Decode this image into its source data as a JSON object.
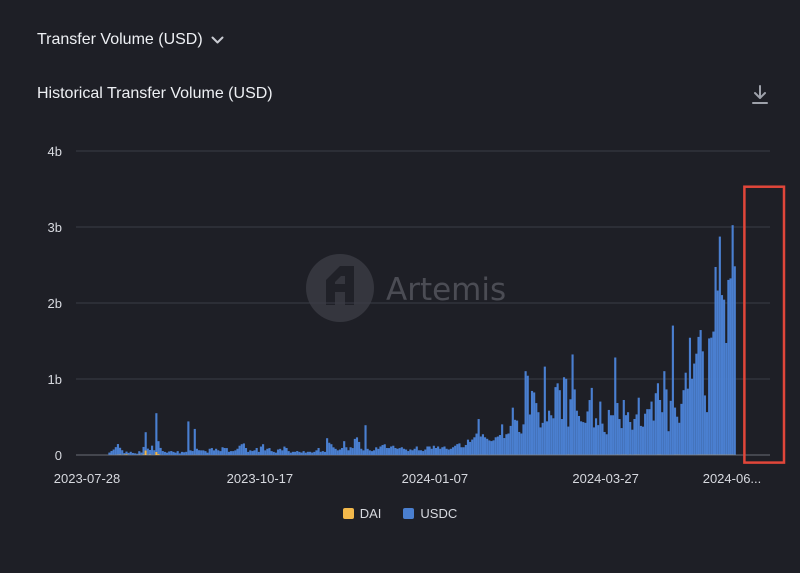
{
  "header": {
    "dropdown_label": "Transfer Volume (USD)",
    "chart_title": "Historical Transfer Volume (USD)",
    "icons": {
      "dropdown": "chevron-down-icon",
      "download": "download-icon",
      "watermark": "artemis-logo"
    }
  },
  "watermark": {
    "text": "Artemis"
  },
  "colors": {
    "DAI": "#f2b84b",
    "USDC": "#4a7fd0",
    "background": "#1e1f26",
    "highlight": "#e0463a",
    "grid": "#3a3c46"
  },
  "chart_data": {
    "type": "bar",
    "stacked": true,
    "title": "Historical Transfer Volume (USD)",
    "xlabel": "",
    "ylabel": "",
    "ylim": [
      0,
      4000000000
    ],
    "yticks": [
      {
        "value": 0,
        "label": "0"
      },
      {
        "value": 1000000000,
        "label": "1b"
      },
      {
        "value": 2000000000,
        "label": "2b"
      },
      {
        "value": 3000000000,
        "label": "3b"
      },
      {
        "value": 4000000000,
        "label": "4b"
      }
    ],
    "x_range": [
      "2023-07-28",
      "2024-06-12"
    ],
    "xticks": [
      {
        "date": "2023-07-28",
        "label": "2023-07-28"
      },
      {
        "date": "2023-10-17",
        "label": "2023-10-17"
      },
      {
        "date": "2024-01-07",
        "label": "2024-01-07"
      },
      {
        "date": "2024-03-27",
        "label": "2024-03-27"
      },
      {
        "date": "2024-06-06",
        "label": "2024-06..."
      }
    ],
    "legend": {
      "placement": "bottom",
      "entries": [
        "DAI",
        "USDC"
      ]
    },
    "grid": true,
    "highlight_box": {
      "x_start": "2024-05-31",
      "x_end": "2024-06-12",
      "y_start": -100000000,
      "y_end": 3530000000
    },
    "series": [
      {
        "name": "DAI",
        "values": [
          0,
          0,
          0,
          0,
          0,
          0,
          0,
          0,
          0,
          0,
          2000000,
          3000000,
          2000000,
          3000000,
          4000000,
          5000000,
          3000000,
          5000000,
          10000000,
          3000000,
          2000000,
          2000000,
          2000000,
          2000000,
          5000000,
          2000000,
          6000000,
          60000000,
          4000000,
          6000000,
          3000000,
          3000000,
          40000000,
          12000000,
          3000000,
          2000000,
          1000000,
          1000000,
          1000000,
          2000000,
          1000000,
          1000000,
          1000000,
          1000000,
          1000000,
          1000000,
          2000000,
          2000000,
          1000000,
          2000000,
          3000000,
          2000000,
          3000000,
          1000000,
          1000000,
          1000000,
          1000000,
          2000000,
          1000000,
          1000000,
          2000000,
          2000000,
          1000000,
          2000000,
          2000000,
          1000000,
          2000000,
          1000000,
          1000000,
          1000000,
          2000000,
          2000000,
          2000000,
          2000000,
          2000000,
          1000000,
          1000000,
          2000000,
          2000000,
          2000000,
          1000000,
          1000000,
          2000000,
          1000000,
          2000000,
          1000000,
          1000000,
          1000000,
          1000000,
          2000000,
          1000000,
          1000000,
          1000000,
          2000000,
          1000000,
          1000000,
          2000000,
          2000000,
          2000000,
          1000000,
          2000000,
          1000000,
          1000000,
          2000000,
          2000000,
          2000000,
          1000000,
          1000000,
          2000000,
          2000000,
          1000000,
          1000000,
          1000000,
          1000000,
          2000000,
          1000000,
          1000000,
          1000000,
          2000000,
          2000000,
          2000000,
          2000000,
          2000000,
          2000000,
          1000000,
          2000000,
          2000000,
          2000000,
          2000000,
          1000000,
          2000000,
          1000000,
          1000000,
          1000000,
          2000000,
          1000000,
          1000000,
          2000000,
          1000000,
          1000000,
          2000000,
          1000000,
          2000000,
          2000000,
          2000000,
          2000000,
          1000000,
          2000000,
          2000000,
          2000000,
          2000000,
          3000000,
          2000000,
          2000000,
          2000000,
          2000000,
          2000000,
          2000000,
          2000000,
          2000000,
          2000000,
          2000000,
          2000000,
          2000000,
          2000000,
          2000000,
          2000000,
          2000000,
          2000000,
          2000000,
          2000000,
          2000000,
          2000000,
          3000000,
          3000000,
          2000000,
          2000000,
          2000000,
          2000000,
          2000000,
          3000000,
          3000000,
          2000000,
          3000000,
          3000000,
          3000000,
          3000000,
          3000000,
          2000000,
          3000000,
          3000000,
          3000000,
          3000000,
          3000000,
          3000000,
          3000000,
          3000000,
          3000000,
          3000000,
          3000000,
          3000000,
          3000000,
          3000000,
          3000000,
          3000000,
          3000000,
          3000000,
          3000000,
          3000000,
          3000000,
          3000000,
          3000000,
          3000000,
          3000000,
          3000000,
          3000000,
          3000000,
          3000000,
          3000000,
          3000000,
          3000000,
          3000000,
          3000000,
          3000000,
          3000000,
          4000000,
          3000000,
          3000000,
          3000000,
          3000000,
          3000000,
          3000000,
          3000000,
          3000000,
          3000000,
          3000000,
          3000000,
          3000000,
          3000000,
          3000000,
          3000000,
          3000000,
          3000000,
          3000000,
          3000000,
          3000000,
          3000000,
          3000000,
          4000000,
          3000000,
          4000000,
          4000000,
          4000000,
          3000000,
          4000000,
          3000000,
          4000000,
          4000000,
          4000000,
          3000000,
          3000000,
          3000000,
          3000000,
          3000000,
          3000000,
          3000000,
          3000000,
          4000000,
          4000000,
          3000000,
          3000000,
          3000000,
          3000000,
          3000000,
          3000000,
          4000000,
          4000000,
          4000000,
          3000000,
          3000000,
          3000000,
          3000000,
          3000000,
          3000000,
          3000000,
          3000000,
          4000000,
          4000000,
          4000000,
          4000000,
          4000000,
          4000000,
          4000000,
          4000000,
          4000000,
          4000000,
          4000000,
          4000000,
          4000000,
          4000000,
          4000000,
          4000000,
          4000000,
          3000000,
          4000000,
          4000000,
          4000000,
          4000000,
          4000000,
          4000000,
          4000000,
          4000000,
          4000000,
          4000000,
          4000000,
          4000000,
          4000000,
          4000000,
          4000000,
          4000000,
          4000000,
          5000000,
          5000000,
          5000000,
          5000000,
          5000000,
          5000000,
          5000000,
          5000000,
          5000000,
          6000000,
          6000000,
          6000000,
          6000000,
          6000000,
          6000000,
          6000000,
          6000000
        ]
      },
      {
        "name": "USDC",
        "values": [
          0,
          0,
          0,
          0,
          0,
          0,
          0,
          0,
          0,
          0,
          30000000,
          50000000,
          70000000,
          100000000,
          140000000,
          90000000,
          60000000,
          20000000,
          35000000,
          25000000,
          40000000,
          25000000,
          20000000,
          15000000,
          45000000,
          30000000,
          100000000,
          240000000,
          80000000,
          60000000,
          120000000,
          60000000,
          510000000,
          170000000,
          90000000,
          50000000,
          40000000,
          30000000,
          45000000,
          50000000,
          40000000,
          30000000,
          50000000,
          20000000,
          40000000,
          35000000,
          40000000,
          440000000,
          60000000,
          50000000,
          340000000,
          80000000,
          60000000,
          60000000,
          60000000,
          50000000,
          30000000,
          80000000,
          90000000,
          60000000,
          80000000,
          60000000,
          50000000,
          100000000,
          90000000,
          90000000,
          40000000,
          50000000,
          50000000,
          60000000,
          80000000,
          120000000,
          140000000,
          150000000,
          90000000,
          40000000,
          60000000,
          50000000,
          60000000,
          90000000,
          40000000,
          110000000,
          140000000,
          60000000,
          80000000,
          90000000,
          50000000,
          40000000,
          30000000,
          70000000,
          80000000,
          60000000,
          110000000,
          90000000,
          50000000,
          30000000,
          40000000,
          40000000,
          50000000,
          40000000,
          30000000,
          50000000,
          30000000,
          40000000,
          40000000,
          30000000,
          40000000,
          60000000,
          90000000,
          40000000,
          50000000,
          40000000,
          220000000,
          160000000,
          140000000,
          100000000,
          80000000,
          60000000,
          70000000,
          90000000,
          180000000,
          100000000,
          60000000,
          100000000,
          90000000,
          210000000,
          230000000,
          170000000,
          80000000,
          60000000,
          390000000,
          80000000,
          60000000,
          50000000,
          60000000,
          100000000,
          80000000,
          110000000,
          130000000,
          140000000,
          90000000,
          90000000,
          110000000,
          120000000,
          90000000,
          80000000,
          90000000,
          100000000,
          80000000,
          70000000,
          50000000,
          70000000,
          60000000,
          80000000,
          110000000,
          60000000,
          60000000,
          50000000,
          70000000,
          110000000,
          110000000,
          80000000,
          120000000,
          90000000,
          110000000,
          80000000,
          100000000,
          110000000,
          80000000,
          70000000,
          80000000,
          100000000,
          120000000,
          140000000,
          150000000,
          100000000,
          100000000,
          130000000,
          200000000,
          170000000,
          200000000,
          230000000,
          280000000,
          470000000,
          240000000,
          270000000,
          230000000,
          210000000,
          190000000,
          180000000,
          190000000,
          230000000,
          240000000,
          260000000,
          400000000,
          220000000,
          270000000,
          280000000,
          380000000,
          620000000,
          460000000,
          450000000,
          300000000,
          280000000,
          400000000,
          1100000000,
          1040000000,
          530000000,
          840000000,
          820000000,
          680000000,
          560000000,
          360000000,
          420000000,
          1160000000,
          440000000,
          580000000,
          520000000,
          480000000,
          890000000,
          940000000,
          850000000,
          470000000,
          1020000000,
          1000000000,
          370000000,
          730000000,
          1320000000,
          860000000,
          580000000,
          510000000,
          440000000,
          430000000,
          420000000,
          570000000,
          720000000,
          880000000,
          360000000,
          480000000,
          390000000,
          700000000,
          410000000,
          300000000,
          270000000,
          590000000,
          520000000,
          520000000,
          1280000000,
          680000000,
          470000000,
          350000000,
          720000000,
          520000000,
          560000000,
          430000000,
          330000000,
          470000000,
          530000000,
          750000000,
          380000000,
          370000000,
          540000000,
          600000000,
          600000000,
          700000000,
          450000000,
          810000000,
          940000000,
          720000000,
          560000000,
          1100000000,
          860000000,
          310000000,
          710000000,
          1700000000,
          620000000,
          500000000,
          420000000,
          670000000,
          850000000,
          1080000000,
          870000000,
          1540000000,
          1000000000,
          1200000000,
          1330000000,
          1550000000,
          1640000000,
          1360000000,
          780000000,
          560000000,
          1530000000,
          1540000000,
          1620000000,
          2470000000,
          2160000000,
          2870000000,
          2100000000,
          2040000000,
          1470000000,
          2300000000,
          2320000000,
          3020000000,
          2480000000
        ]
      }
    ]
  },
  "legend": {
    "items": [
      "DAI",
      "USDC"
    ]
  }
}
